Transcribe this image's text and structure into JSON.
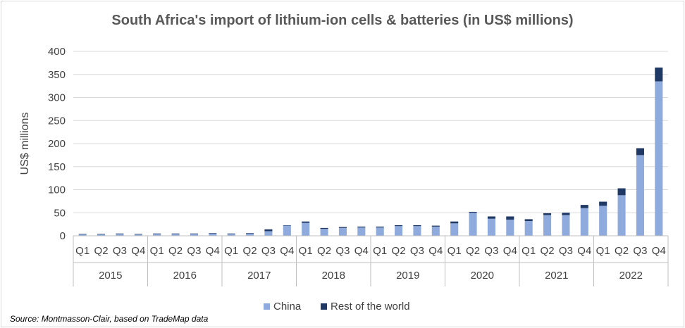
{
  "chart_data": {
    "type": "bar",
    "stacked": true,
    "title": "South Africa's import of lithium-ion cells & batteries (in US$ millions)",
    "ylabel": "US$ millions",
    "xlabel": "",
    "ylim": [
      0,
      400
    ],
    "yticks": [
      0,
      50,
      100,
      150,
      200,
      250,
      300,
      350,
      400
    ],
    "years": [
      "2015",
      "2016",
      "2017",
      "2018",
      "2019",
      "2020",
      "2021",
      "2022"
    ],
    "quarters": [
      "Q1",
      "Q2",
      "Q3",
      "Q4"
    ],
    "gridlines": true,
    "legend_position": "bottom",
    "series": [
      {
        "name": "China",
        "color": "#8faadc",
        "values": [
          3,
          3,
          4,
          3,
          4,
          4,
          4,
          5,
          4,
          5,
          10,
          22,
          28,
          15,
          17,
          18,
          18,
          21,
          21,
          20,
          27,
          50,
          37,
          35,
          32,
          45,
          45,
          60,
          65,
          88,
          175,
          335
        ]
      },
      {
        "name": "Rest of the world",
        "color": "#203864",
        "values": [
          1,
          1,
          1,
          1,
          1,
          1,
          1,
          1,
          1,
          1,
          4,
          1,
          3,
          2,
          2,
          2,
          2,
          2,
          2,
          2,
          4,
          2,
          5,
          7,
          4,
          4,
          5,
          7,
          9,
          15,
          15,
          30
        ]
      }
    ]
  },
  "source": "Source: Montmasson-Clair, based on TradeMap data"
}
